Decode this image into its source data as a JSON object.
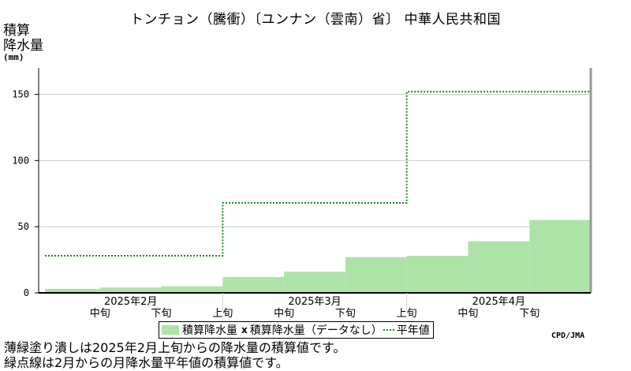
{
  "title": "トンチョン（騰衝）〔ユンナン（雲南）省〕 中華人民共和国",
  "axis": {
    "ylabel_line1": "積算",
    "ylabel_line2": "降水量",
    "yunit": "(mm)"
  },
  "legend": {
    "bar_label": "積算降水量",
    "x_marker": "x",
    "nodata_label": "積算降水量（データなし）",
    "normal_label": "平年値"
  },
  "credit": "CPD/JMA",
  "notes": [
    "薄緑塗り潰しは2025年2月上旬からの降水量の積算値です。",
    "緑点線は2月からの月降水量平年値の積算値です。"
  ],
  "colors": {
    "bar_fill": "#aee3a8",
    "normal_line": "#1a8a1a",
    "grid": "#cccccc",
    "frame": "#999999"
  },
  "chart_data": {
    "type": "area",
    "ylim": [
      0,
      170
    ],
    "yticks": [
      0,
      50,
      100,
      150
    ],
    "grid": true,
    "categories": [
      "2025年2月上旬",
      "2025年2月中旬",
      "2025年2月下旬",
      "2025年3月上旬",
      "2025年3月中旬",
      "2025年3月下旬",
      "2025年4月上旬",
      "2025年4月中旬",
      "2025年4月下旬"
    ],
    "tick_labels": [
      "中旬",
      "下旬",
      "上旬",
      "中旬",
      "下旬",
      "上旬",
      "中旬",
      "下旬"
    ],
    "tick_positions": [
      1,
      2,
      3,
      4,
      5,
      6,
      7,
      8
    ],
    "month_labels": [
      {
        "label": "2025年2月",
        "index": 0
      },
      {
        "label": "2025年3月",
        "index": 3
      },
      {
        "label": "2025年4月",
        "index": 6
      }
    ],
    "series": [
      {
        "name": "積算降水量",
        "type": "area",
        "values": [
          3,
          4,
          5,
          12,
          16,
          27,
          28,
          39,
          55
        ]
      },
      {
        "name": "平年値",
        "type": "step",
        "values": [
          28,
          28,
          28,
          68,
          68,
          68,
          152,
          152,
          152
        ]
      }
    ]
  }
}
